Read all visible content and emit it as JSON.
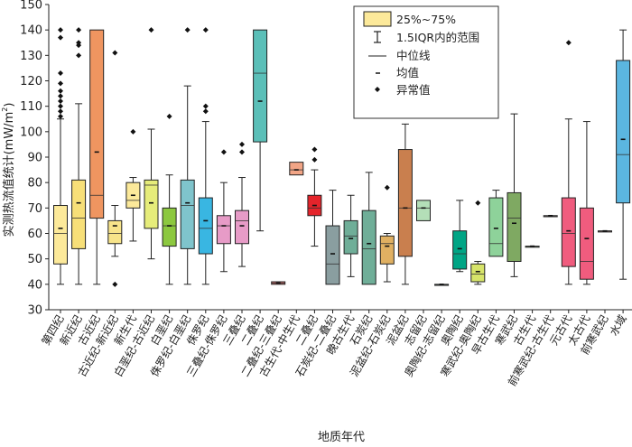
{
  "chart_data": {
    "type": "box",
    "xlabel": "地质年代",
    "ylabel": "实测热流值统计(mW/m²)",
    "ylabel_main": "实测热流值统计(mW/m",
    "ylabel_sup": "2",
    "ylabel_tail": ")",
    "ylim": [
      30,
      150
    ],
    "yticks": [
      30,
      40,
      50,
      60,
      70,
      80,
      90,
      100,
      110,
      120,
      130,
      140,
      150
    ],
    "grid": false,
    "legend_position": "top-right",
    "legend": {
      "box": "25%~75%",
      "whisker": "1.5IQR内的范围",
      "median": "中位线",
      "mean": "均值",
      "outlier": "异常值"
    },
    "categories": [
      {
        "label": "第四纪",
        "color": "#fce99a",
        "low": 40,
        "q1": 48,
        "median": 60,
        "q3": 71,
        "high": 105,
        "mean": 62,
        "outliers": [
          106,
          108,
          110,
          112,
          114,
          116,
          119,
          123,
          137,
          140
        ]
      },
      {
        "label": "新近纪",
        "color": "#f7df78",
        "low": 40,
        "q1": 54,
        "median": 66,
        "q3": 81,
        "high": 111,
        "mean": 72,
        "outliers": [
          130,
          134,
          135,
          140
        ]
      },
      {
        "label": "古近纪",
        "color": "#ef9560",
        "low": 40,
        "q1": 66,
        "median": 75,
        "q3": 140,
        "high": 140,
        "mean": 92,
        "outliers": []
      },
      {
        "label": "古近纪-新近纪",
        "color": "#f7e48a",
        "low": 51,
        "q1": 56,
        "median": 60,
        "q3": 65,
        "high": 71,
        "mean": 63,
        "outliers": [
          40,
          131
        ]
      },
      {
        "label": "新生代",
        "color": "#fce99a",
        "low": 57,
        "q1": 70,
        "median": 73,
        "q3": 80,
        "high": 82,
        "mean": 75,
        "outliers": [
          100
        ]
      },
      {
        "label": "白垩纪-古近纪",
        "color": "#e6ec7a",
        "low": 50,
        "q1": 62,
        "median": 79,
        "q3": 81,
        "high": 101,
        "mean": 72,
        "outliers": [
          140
        ]
      },
      {
        "label": "白垩纪",
        "color": "#8cc83f",
        "low": 40,
        "q1": 55,
        "median": 63,
        "q3": 70,
        "high": 83,
        "mean": 63,
        "outliers": [
          106
        ]
      },
      {
        "label": "侏罗纪-白垩纪",
        "color": "#7fc4cc",
        "low": 40,
        "q1": 54,
        "median": 71,
        "q3": 81,
        "high": 118,
        "mean": 72,
        "outliers": [
          140
        ]
      },
      {
        "label": "侏罗纪",
        "color": "#39b6e2",
        "low": 40,
        "q1": 52,
        "median": 62,
        "q3": 74,
        "high": 104,
        "mean": 65,
        "outliers": [
          108,
          110,
          140
        ]
      },
      {
        "label": "三叠纪-侏罗纪",
        "color": "#e79bc7",
        "low": 45,
        "q1": 56,
        "median": 63,
        "q3": 67,
        "high": 80,
        "mean": 63,
        "outliers": [
          92
        ]
      },
      {
        "label": "三叠纪",
        "color": "#e79bc7",
        "low": 47,
        "q1": 56,
        "median": 65,
        "q3": 69,
        "high": 82,
        "mean": 63,
        "outliers": [
          92,
          95
        ]
      },
      {
        "label": "二叠纪",
        "color": "#5bbfb8",
        "low": 61,
        "q1": 96,
        "median": 123,
        "q3": 140,
        "high": 140,
        "mean": 112,
        "outliers": []
      },
      {
        "label": "二叠纪-三叠纪",
        "color": "#ef7a78",
        "low": 40,
        "q1": 40,
        "median": 40.5,
        "q3": 41,
        "high": 41,
        "mean": 40.5,
        "outliers": []
      },
      {
        "label": "古生代-中生代",
        "color": "#f2a586",
        "low": 83,
        "q1": 83,
        "median": 85,
        "q3": 88,
        "high": 88,
        "mean": 85,
        "outliers": []
      },
      {
        "label": "二叠纪",
        "color": "#e5242b",
        "low": 55,
        "q1": 67,
        "median": 70,
        "q3": 75,
        "high": 85,
        "mean": 71,
        "outliers": [
          89,
          93
        ]
      },
      {
        "label": "石炭纪-二叠纪",
        "color": "#8a9ea0",
        "low": 40,
        "q1": 40,
        "median": 48,
        "q3": 63,
        "high": 77,
        "mean": 52,
        "outliers": []
      },
      {
        "label": "晚古生代",
        "color": "#6fae98",
        "low": 43,
        "q1": 52,
        "median": 59,
        "q3": 65,
        "high": 75,
        "mean": 58,
        "outliers": []
      },
      {
        "label": "石炭纪",
        "color": "#6fae98",
        "low": 40,
        "q1": 40,
        "median": 54,
        "q3": 69,
        "high": 84,
        "mean": 56,
        "outliers": []
      },
      {
        "label": "泥盆纪-石炭纪",
        "color": "#e0b062",
        "low": 41,
        "q1": 48,
        "median": 56,
        "q3": 59,
        "high": 60,
        "mean": 55,
        "outliers": [
          78
        ]
      },
      {
        "label": "泥盆纪",
        "color": "#c97f4e",
        "low": 40,
        "q1": 51,
        "median": 70,
        "q3": 93,
        "high": 103,
        "mean": 70,
        "outliers": []
      },
      {
        "label": "志留纪",
        "color": "#b4dfb8",
        "low": 65,
        "q1": 65,
        "median": 70,
        "q3": 73,
        "high": 73,
        "mean": 70,
        "outliers": []
      },
      {
        "label": "奥陶纪-志留纪",
        "color": "#7a9f88",
        "low": 40,
        "q1": 40,
        "median": 40,
        "q3": 40,
        "high": 40,
        "mean": 40,
        "outliers": []
      },
      {
        "label": "奥陶纪",
        "color": "#00a585",
        "low": 45,
        "q1": 46,
        "median": 52,
        "q3": 61,
        "high": 73,
        "mean": 54,
        "outliers": []
      },
      {
        "label": "寒武纪-奥陶纪",
        "color": "#d7e46a",
        "low": 40,
        "q1": 41,
        "median": 44,
        "q3": 48,
        "high": 49,
        "mean": 45,
        "outliers": [
          72
        ]
      },
      {
        "label": "早古生代",
        "color": "#8ed29a",
        "low": 51,
        "q1": 51,
        "median": 56,
        "q3": 74,
        "high": 77,
        "mean": 62,
        "outliers": []
      },
      {
        "label": "寒武纪",
        "color": "#7fa962",
        "low": 43,
        "q1": 49,
        "median": 66,
        "q3": 76,
        "high": 107,
        "mean": 64,
        "outliers": []
      },
      {
        "label": "古生代",
        "color": "#a7c29c",
        "low": 55,
        "q1": 55,
        "median": 55,
        "q3": 55,
        "high": 55,
        "mean": 55,
        "outliers": []
      },
      {
        "label": "前寒武纪-古生代",
        "color": "#c6a6b4",
        "low": 67,
        "q1": 67,
        "median": 67,
        "q3": 67,
        "high": 67,
        "mean": 67,
        "outliers": []
      },
      {
        "label": "元古代",
        "color": "#f05c7e",
        "low": 40,
        "q1": 47,
        "median": 60,
        "q3": 74,
        "high": 105,
        "mean": 61,
        "outliers": [
          135
        ]
      },
      {
        "label": "太古代",
        "color": "#f05c7e",
        "low": 40,
        "q1": 42,
        "median": 49,
        "q3": 70,
        "high": 104,
        "mean": 58,
        "outliers": []
      },
      {
        "label": "前寒武纪",
        "color": "#dba0a8",
        "low": 61,
        "q1": 61,
        "median": 61,
        "q3": 61,
        "high": 61,
        "mean": 61,
        "outliers": []
      },
      {
        "label": "水域",
        "color": "#5bb6e0",
        "low": 42,
        "q1": 72,
        "median": 91,
        "q3": 128,
        "high": 140,
        "mean": 97,
        "outliers": []
      }
    ]
  }
}
